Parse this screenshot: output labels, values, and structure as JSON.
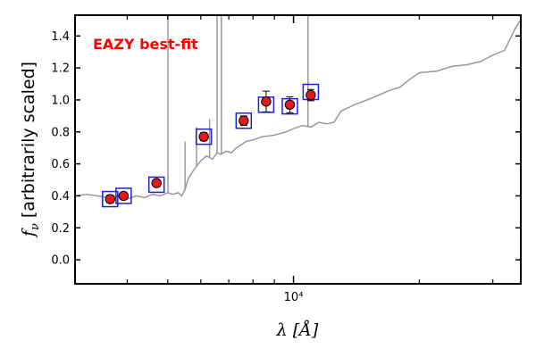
{
  "chart_data": {
    "type": "scatter",
    "xscale": "log",
    "xlim": [
      3000,
      35000
    ],
    "ylim": [
      -0.15,
      1.53
    ],
    "xlabel": "λ [Å]",
    "ylabel_prefix": "f",
    "ylabel_sub": "ν",
    "ylabel_suffix": " [arbitrarily scaled]",
    "x_tick_labels": [
      {
        "x": 10000,
        "label": "10⁴"
      }
    ],
    "y_ticks": [
      0.0,
      0.2,
      0.4,
      0.6,
      0.8,
      1.0,
      1.2,
      1.4
    ],
    "y_tick_labels": [
      "0.0",
      "0.2",
      "0.4",
      "0.6",
      "0.8",
      "1.0",
      "1.2",
      "1.4"
    ],
    "grid": false,
    "annotation": {
      "text": "EAZY best-fit",
      "color": "#ff0000",
      "position": "top-left"
    },
    "colors": {
      "template": "#999999",
      "model_box": "#1f1fe0",
      "observed": "#e41a1c",
      "errorbar": "#000000"
    },
    "template_spectrum": {
      "name": "",
      "x": [
        3000,
        3200,
        3400,
        3600,
        3800,
        4000,
        4200,
        4400,
        4600,
        4800,
        5000,
        5150,
        5300,
        5400,
        5500,
        5600,
        5800,
        6000,
        6200,
        6400,
        6563,
        6700,
        6900,
        7100,
        7300,
        7500,
        7700,
        8000,
        8400,
        9000,
        9600,
        10000,
        10500,
        11000,
        11500,
        12000,
        12500,
        13000,
        14000,
        15000,
        16000,
        17000,
        18000,
        19000,
        20000,
        22000,
        24000,
        26000,
        28000,
        30000,
        32000,
        34000,
        35000
      ],
      "y": [
        0.4,
        0.41,
        0.4,
        0.39,
        0.4,
        0.38,
        0.4,
        0.39,
        0.41,
        0.4,
        0.42,
        0.41,
        0.42,
        0.4,
        0.44,
        0.51,
        0.57,
        0.62,
        0.65,
        0.63,
        0.67,
        0.66,
        0.68,
        0.67,
        0.7,
        0.72,
        0.74,
        0.75,
        0.77,
        0.78,
        0.8,
        0.82,
        0.84,
        0.83,
        0.86,
        0.85,
        0.86,
        0.93,
        0.97,
        1.0,
        1.03,
        1.06,
        1.08,
        1.13,
        1.17,
        1.18,
        1.21,
        1.22,
        1.24,
        1.28,
        1.31,
        1.45,
        1.5
      ]
    },
    "emission_lines": [
      {
        "x": 5007,
        "peak": 1.6
      },
      {
        "x": 6563,
        "peak": 1.6
      },
      {
        "x": 6720,
        "peak": 1.6
      },
      {
        "x": 5860,
        "peak": 0.83
      },
      {
        "x": 6300,
        "peak": 0.88
      },
      {
        "x": 5500,
        "peak": 0.74
      },
      {
        "x": 10830,
        "peak": 1.6
      }
    ],
    "model_boxes": {
      "x": [
        3640,
        3920,
        4700,
        6100,
        7600,
        8600,
        9800,
        11000
      ],
      "y": [
        0.38,
        0.4,
        0.47,
        0.77,
        0.87,
        0.97,
        0.96,
        1.05
      ]
    },
    "observed_points": {
      "x": [
        3640,
        3920,
        4700,
        6100,
        7600,
        8600,
        9800,
        11000
      ],
      "y": [
        0.38,
        0.4,
        0.48,
        0.77,
        0.87,
        0.99,
        0.97,
        1.03
      ],
      "yerr": [
        0.025,
        0.02,
        0.02,
        0.025,
        0.03,
        0.065,
        0.05,
        0.035
      ]
    }
  }
}
